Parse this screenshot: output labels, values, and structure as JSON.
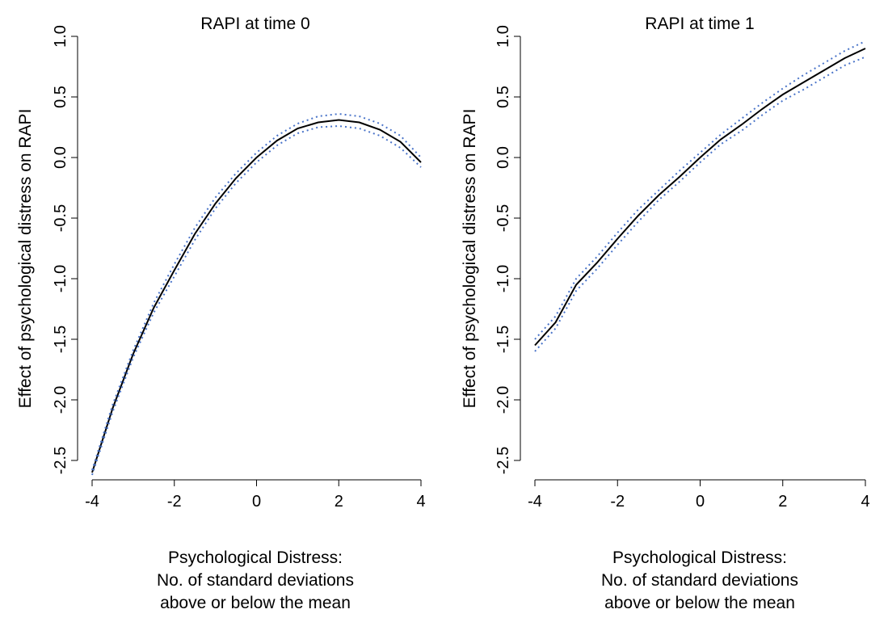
{
  "colors": {
    "estimate": "#000000",
    "ci": "#4a74c9",
    "axis": "#000000"
  },
  "chart_data": [
    {
      "type": "line",
      "title": "RAPI at time 0",
      "ylabel": "Effect of psychological distress on RAPI",
      "xlabel_lines": [
        "Psychological Distress:",
        "No. of standard deviations",
        "above or below the mean"
      ],
      "xlim": [
        -4,
        4
      ],
      "ylim": [
        -2.5,
        1.0
      ],
      "xticks": [
        -4,
        -2,
        0,
        2,
        4
      ],
      "xtick_labels": [
        "-4",
        "-2",
        "0",
        "2",
        "4"
      ],
      "yticks": [
        -2.5,
        -2.0,
        -1.5,
        -1.0,
        -0.5,
        0.0,
        0.5,
        1.0
      ],
      "ytick_labels": [
        "-2.5",
        "-2.0",
        "-1.5",
        "-1.0",
        "-0.5",
        "0.0",
        "0.5",
        "1.0"
      ],
      "x": [
        -4,
        -3.5,
        -3,
        -2.5,
        -2,
        -1.5,
        -1,
        -0.5,
        0,
        0.5,
        1,
        1.5,
        2,
        2.5,
        3,
        3.5,
        4
      ],
      "series": [
        {
          "role": "estimate",
          "style": "solid",
          "values": [
            -2.6,
            -2.07,
            -1.62,
            -1.24,
            -0.93,
            -0.63,
            -0.38,
            -0.17,
            0.0,
            0.14,
            0.24,
            0.29,
            0.31,
            0.29,
            0.23,
            0.13,
            -0.04
          ]
        },
        {
          "role": "upper",
          "style": "dotted",
          "values": [
            -2.58,
            -2.04,
            -1.59,
            -1.2,
            -0.88,
            -0.58,
            -0.33,
            -0.13,
            0.04,
            0.18,
            0.28,
            0.34,
            0.36,
            0.34,
            0.28,
            0.18,
            0.0
          ]
        },
        {
          "role": "lower",
          "style": "dotted",
          "values": [
            -2.62,
            -2.1,
            -1.65,
            -1.28,
            -0.98,
            -0.68,
            -0.42,
            -0.21,
            -0.04,
            0.1,
            0.2,
            0.25,
            0.26,
            0.24,
            0.18,
            0.08,
            -0.08
          ]
        }
      ]
    },
    {
      "type": "line",
      "title": "RAPI at time 1",
      "ylabel": "Effect of psychological distress on RAPI",
      "xlabel_lines": [
        "Psychological Distress:",
        "No. of standard deviations",
        "above or below the mean"
      ],
      "xlim": [
        -4,
        4
      ],
      "ylim": [
        -2.5,
        1.0
      ],
      "xticks": [
        -4,
        -2,
        0,
        2,
        4
      ],
      "xtick_labels": [
        "-4",
        "-2",
        "0",
        "2",
        "4"
      ],
      "yticks": [
        -2.5,
        -2.0,
        -1.5,
        -1.0,
        -0.5,
        0.0,
        0.5,
        1.0
      ],
      "ytick_labels": [
        "-2.5",
        "-2.0",
        "-1.5",
        "-1.0",
        "-0.5",
        "0.0",
        "0.5",
        "1.0"
      ],
      "x": [
        -4,
        -3.5,
        -3,
        -2.5,
        -2,
        -1.5,
        -1,
        -0.5,
        0,
        0.5,
        1,
        1.5,
        2,
        2.5,
        3,
        3.5,
        4
      ],
      "series": [
        {
          "role": "estimate",
          "style": "solid",
          "values": [
            -1.55,
            -1.36,
            -1.05,
            -0.87,
            -0.67,
            -0.48,
            -0.31,
            -0.16,
            0.0,
            0.15,
            0.27,
            0.4,
            0.52,
            0.62,
            0.72,
            0.82,
            0.9
          ]
        },
        {
          "role": "upper",
          "style": "dotted",
          "values": [
            -1.5,
            -1.31,
            -1.0,
            -0.82,
            -0.62,
            -0.43,
            -0.27,
            -0.11,
            0.04,
            0.19,
            0.32,
            0.45,
            0.57,
            0.68,
            0.78,
            0.88,
            0.96
          ]
        },
        {
          "role": "lower",
          "style": "dotted",
          "values": [
            -1.6,
            -1.41,
            -1.1,
            -0.92,
            -0.72,
            -0.53,
            -0.35,
            -0.2,
            -0.04,
            0.11,
            0.22,
            0.35,
            0.47,
            0.56,
            0.66,
            0.76,
            0.83
          ]
        }
      ]
    }
  ]
}
